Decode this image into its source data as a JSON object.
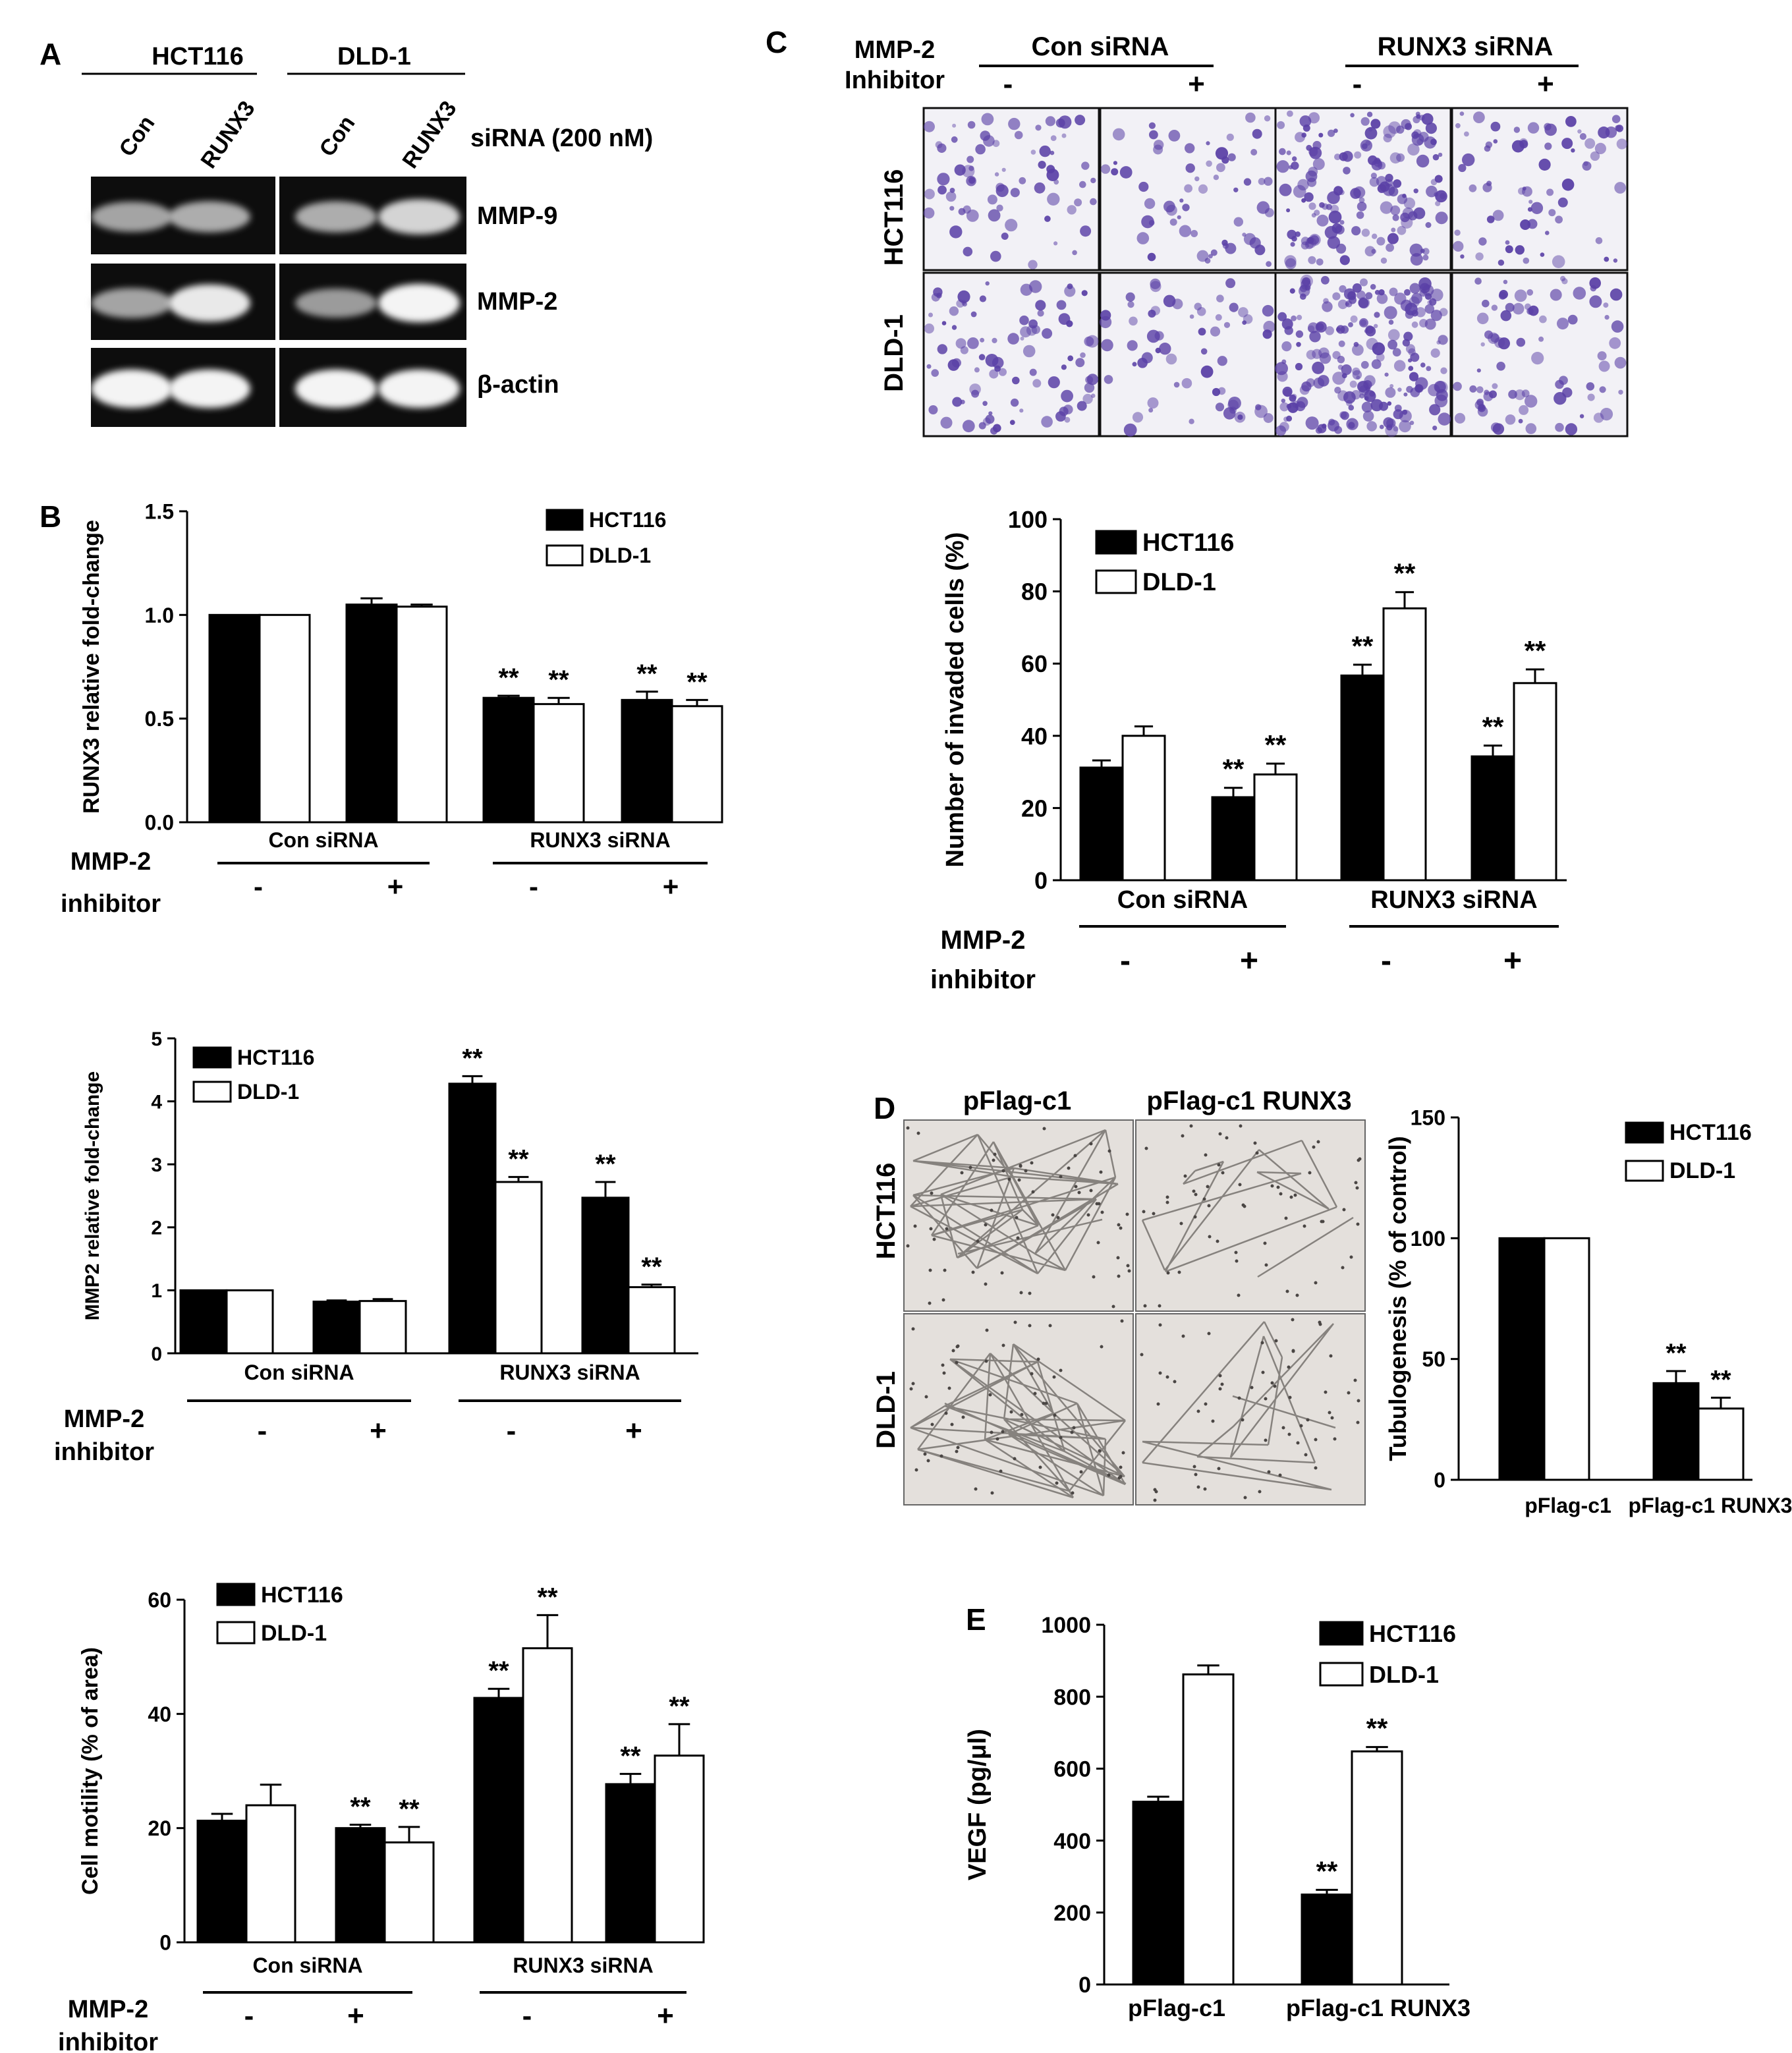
{
  "panel_labels": {
    "A": "A",
    "B": "B",
    "C": "C",
    "D": "D",
    "E": "E"
  },
  "colors": {
    "hct116": "#000000",
    "dld1": "#ffffff",
    "stain_purple": "#5a40a6",
    "tube_bg": "#e4e0dc"
  },
  "panel_a": {
    "cell_lines": [
      "HCT116",
      "DLD-1"
    ],
    "lanes": [
      "Con",
      "RUNX3",
      "Con",
      "RUNX3"
    ],
    "sirna_label": "siRNA (200 nM)",
    "genes": [
      "MMP-9",
      "MMP-2",
      "β-actin"
    ],
    "band_intensity": [
      [
        0.55,
        0.6,
        0.6,
        0.8
      ],
      [
        0.55,
        0.9,
        0.5,
        0.95
      ],
      [
        0.95,
        0.95,
        0.95,
        0.95
      ]
    ]
  },
  "panel_c_images": {
    "inhibitor_label_1": "MMP-2",
    "inhibitor_label_2": "Inhibitor",
    "groups": [
      "Con siRNA",
      "RUNX3 siRNA"
    ],
    "signs": [
      "-",
      "+",
      "-",
      "+"
    ],
    "rows": [
      "HCT116",
      "DLD-1"
    ]
  },
  "panel_d_images": {
    "columns": [
      "pFlag-c1",
      "pFlag-c1 RUNX3"
    ],
    "rows": [
      "HCT116",
      "DLD-1"
    ]
  },
  "chart_data": [
    {
      "id": "B1",
      "type": "bar",
      "ylabel": "RUNX3 relative fold-change",
      "ylim": [
        0,
        1.5
      ],
      "yticks": [
        "0.0",
        "0.5",
        "1.0",
        "1.5"
      ],
      "groups": [
        "Con siRNA",
        "RUNX3 siRNA"
      ],
      "inhibitor_label": [
        "MMP-2",
        "inhibitor"
      ],
      "signs": [
        "-",
        "+",
        "-",
        "+"
      ],
      "legend": [
        "HCT116",
        "DLD-1"
      ],
      "legend_position": "top-right",
      "series": [
        {
          "name": "HCT116",
          "values": [
            1.0,
            1.05,
            0.6,
            0.59
          ],
          "errors": [
            0,
            0.03,
            0.01,
            0.04
          ],
          "sig": [
            "",
            "",
            "**",
            "**"
          ]
        },
        {
          "name": "DLD-1",
          "values": [
            1.0,
            1.04,
            0.57,
            0.56
          ],
          "errors": [
            0,
            0.01,
            0.03,
            0.03
          ],
          "sig": [
            "",
            "",
            "**",
            "**"
          ]
        }
      ]
    },
    {
      "id": "B2",
      "type": "bar",
      "ylabel": "MMP2 relative fold-change",
      "ylim": [
        0,
        5
      ],
      "yticks": [
        "0",
        "1",
        "2",
        "3",
        "4",
        "5"
      ],
      "groups": [
        "Con siRNA",
        "RUNX3 siRNA"
      ],
      "inhibitor_label": [
        "MMP-2",
        "inhibitor"
      ],
      "signs": [
        "-",
        "+",
        "-",
        "+"
      ],
      "legend": [
        "HCT116",
        "DLD-1"
      ],
      "legend_position": "top-left",
      "series": [
        {
          "name": "HCT116",
          "values": [
            1.0,
            0.82,
            4.28,
            2.47
          ],
          "errors": [
            0,
            0.02,
            0.12,
            0.25
          ],
          "sig": [
            "",
            "",
            "**",
            "**"
          ]
        },
        {
          "name": "DLD-1",
          "values": [
            1.0,
            0.83,
            2.72,
            1.05
          ],
          "errors": [
            0,
            0.03,
            0.08,
            0.04
          ],
          "sig": [
            "",
            "",
            "**",
            "**"
          ]
        }
      ]
    },
    {
      "id": "B3",
      "type": "bar",
      "ylabel": "Cell motility (% of area)",
      "ylim": [
        0,
        60
      ],
      "yticks": [
        "0",
        "20",
        "40",
        "60"
      ],
      "groups": [
        "Con siRNA",
        "RUNX3 siRNA"
      ],
      "inhibitor_label": [
        "MMP-2",
        "inhibitor"
      ],
      "signs": [
        "-",
        "+",
        "-",
        "+"
      ],
      "legend": [
        "HCT116",
        "DLD-1"
      ],
      "legend_position": "top-left",
      "series": [
        {
          "name": "HCT116",
          "values": [
            21.3,
            20.0,
            42.8,
            27.7
          ],
          "errors": [
            1.2,
            0.6,
            1.6,
            1.8
          ],
          "sig": [
            "",
            "**",
            "**",
            "**"
          ]
        },
        {
          "name": "DLD-1",
          "values": [
            24.0,
            17.5,
            51.5,
            32.7
          ],
          "errors": [
            3.6,
            2.7,
            5.8,
            5.5
          ],
          "sig": [
            "",
            "**",
            "**",
            "**"
          ]
        }
      ]
    },
    {
      "id": "C",
      "type": "bar",
      "ylabel": "Number of invaded cells (%)",
      "ylim": [
        0,
        100
      ],
      "yticks": [
        "0",
        "20",
        "40",
        "60",
        "80",
        "100"
      ],
      "groups": [
        "Con siRNA",
        "RUNX3 siRNA"
      ],
      "inhibitor_label": [
        "MMP-2",
        "inhibitor"
      ],
      "signs": [
        "-",
        "+",
        "-",
        "+"
      ],
      "legend": [
        "HCT116",
        "DLD-1"
      ],
      "legend_position": "top-left",
      "series": [
        {
          "name": "HCT116",
          "values": [
            31.2,
            23.0,
            56.7,
            34.3
          ],
          "errors": [
            2.0,
            2.6,
            3.0,
            3.0
          ],
          "sig": [
            "",
            "**",
            "**",
            "**"
          ]
        },
        {
          "name": "DLD-1",
          "values": [
            40.0,
            29.3,
            75.3,
            54.6
          ],
          "errors": [
            2.6,
            3.0,
            4.5,
            3.8
          ],
          "sig": [
            "",
            "**",
            "**",
            "**"
          ]
        }
      ]
    },
    {
      "id": "D",
      "type": "bar",
      "ylabel": "Tubulogenesis (% of control)",
      "ylim": [
        0,
        150
      ],
      "yticks": [
        "0",
        "50",
        "100",
        "150"
      ],
      "categories": [
        "pFlag-c1",
        "pFlag-c1 RUNX3"
      ],
      "legend": [
        "HCT116",
        "DLD-1"
      ],
      "legend_position": "top-right",
      "series": [
        {
          "name": "HCT116",
          "values": [
            100,
            40
          ],
          "errors": [
            0,
            5
          ],
          "sig": [
            "",
            "**"
          ]
        },
        {
          "name": "DLD-1",
          "values": [
            100,
            29.5
          ],
          "errors": [
            0,
            4.5
          ],
          "sig": [
            "",
            "**"
          ]
        }
      ]
    },
    {
      "id": "E",
      "type": "bar",
      "ylabel": "VEGF (pg/μl)",
      "ylim": [
        0,
        1000
      ],
      "yticks": [
        "0",
        "200",
        "400",
        "600",
        "800",
        "1000"
      ],
      "categories": [
        "pFlag-c1",
        "pFlag-c1 RUNX3"
      ],
      "legend": [
        "HCT116",
        "DLD-1"
      ],
      "legend_position": "top-right",
      "series": [
        {
          "name": "HCT116",
          "values": [
            508,
            250
          ],
          "errors": [
            14,
            13
          ],
          "sig": [
            "",
            "**"
          ]
        },
        {
          "name": "DLD-1",
          "values": [
            862,
            648
          ],
          "errors": [
            25,
            12
          ],
          "sig": [
            "",
            "**"
          ]
        }
      ]
    }
  ]
}
